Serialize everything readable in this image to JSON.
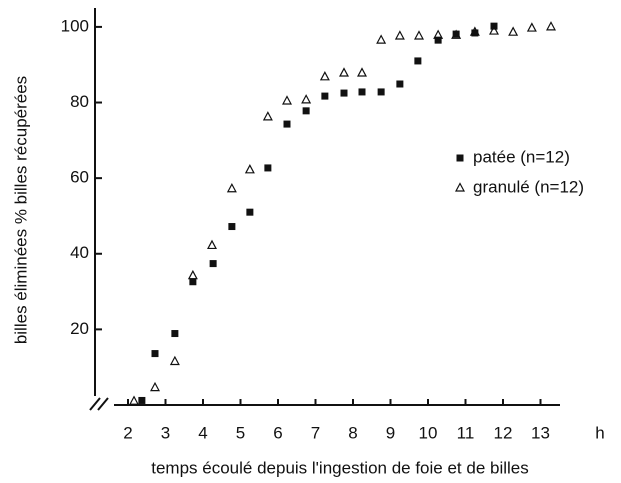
{
  "chart_data": {
    "type": "scatter",
    "xlabel": "temps écoulé depuis l'ingestion de foie et de billes",
    "ylabel": "billes éliminées % billes récupérées",
    "x_unit": "h",
    "xlim": [
      1.12,
      14
    ],
    "ylim": [
      0,
      105
    ],
    "xticks": [
      2,
      3,
      4,
      5,
      6,
      7,
      8,
      9,
      10,
      11,
      12,
      13
    ],
    "yticks": [
      20,
      40,
      60,
      80,
      100
    ],
    "legend": "right",
    "series": [
      {
        "name": "patée (n=12)",
        "color": "#111111",
        "marker": "square",
        "x": [
          2.37,
          2.72,
          3.25,
          3.73,
          4.27,
          4.77,
          5.25,
          5.73,
          6.24,
          6.75,
          7.25,
          7.76,
          8.24,
          8.75,
          9.25,
          9.73,
          10.27,
          10.75,
          11.25,
          11.76
        ],
        "values": [
          1.2,
          13.6,
          18.9,
          32.6,
          37.4,
          47.2,
          51,
          62.7,
          74.3,
          77.8,
          81.7,
          82.5,
          82.8,
          82.8,
          84.9,
          91,
          96.5,
          98.1,
          98.4,
          100.2
        ]
      },
      {
        "name": "granulé (n=12)",
        "color": "#111111",
        "marker": "triangle",
        "x": [
          2.16,
          2.72,
          3.25,
          3.73,
          4.24,
          4.77,
          5.25,
          5.73,
          6.24,
          6.75,
          7.25,
          7.76,
          8.24,
          8.75,
          9.25,
          9.76,
          10.27,
          10.75,
          11.25,
          11.76,
          12.27,
          12.77,
          13.28
        ],
        "values": [
          1,
          4.6,
          11.5,
          34.2,
          42.2,
          57.2,
          62.2,
          76.2,
          80.4,
          80.7,
          86.8,
          87.8,
          87.8,
          96.5,
          97.6,
          97.6,
          97.8,
          97.8,
          98.6,
          98.9,
          98.6,
          99.7,
          100
        ]
      }
    ]
  }
}
